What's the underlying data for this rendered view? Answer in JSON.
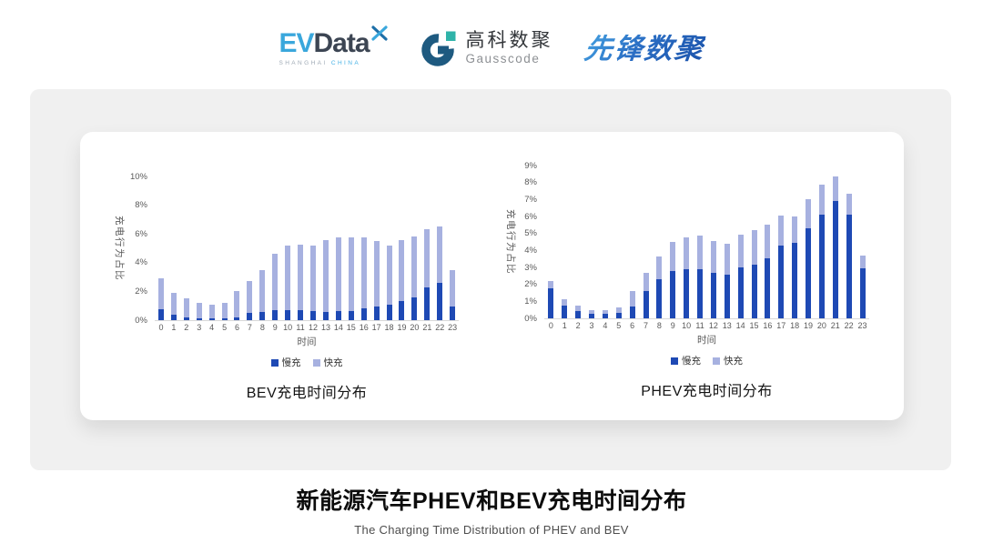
{
  "header": {
    "evdata": {
      "part1": "EV",
      "part2": "Data",
      "tagline_left": "SHANGHAI",
      "tagline_right": "CHINA"
    },
    "gausscode": {
      "name_cn": "高科数聚",
      "name_en": "Gausscode"
    },
    "pioneer": {
      "name": "先锋数聚"
    }
  },
  "colors": {
    "slow_charge": "#1E49B4",
    "fast_charge": "#A7B1E0",
    "axis_line": "#d9d9d9",
    "tick_text": "#595959"
  },
  "chart_data": [
    {
      "type": "bar",
      "stacked": true,
      "title": "BEV充电时间分布",
      "xlabel": "时间",
      "ylabel": "充电行为占比",
      "ylim": [
        0,
        10
      ],
      "ystep": 2,
      "grid": false,
      "legend_position": "bottom",
      "categories": [
        "0",
        "1",
        "2",
        "3",
        "4",
        "5",
        "6",
        "7",
        "8",
        "9",
        "10",
        "11",
        "12",
        "13",
        "14",
        "15",
        "16",
        "17",
        "18",
        "19",
        "20",
        "21",
        "22",
        "23"
      ],
      "series": [
        {
          "name": "慢充",
          "color": "#1E49B4",
          "values": [
            0.75,
            0.35,
            0.2,
            0.1,
            0.1,
            0.12,
            0.2,
            0.5,
            0.55,
            0.7,
            0.7,
            0.7,
            0.65,
            0.6,
            0.65,
            0.65,
            0.8,
            0.95,
            1.05,
            1.3,
            1.6,
            2.3,
            2.6,
            0.95
          ]
        },
        {
          "name": "快充",
          "color": "#A7B1E0",
          "values": [
            2.15,
            1.55,
            1.3,
            1.1,
            0.95,
            1.08,
            1.8,
            2.25,
            2.95,
            3.95,
            4.5,
            4.55,
            4.55,
            5.0,
            5.1,
            5.1,
            4.95,
            4.55,
            4.15,
            4.3,
            4.25,
            4.05,
            3.9,
            2.55
          ]
        }
      ]
    },
    {
      "type": "bar",
      "stacked": true,
      "title": "PHEV充电时间分布",
      "xlabel": "时间",
      "ylabel": "充电行为占比",
      "ylim": [
        0,
        9
      ],
      "ystep": 1,
      "grid": false,
      "legend_position": "bottom",
      "categories": [
        "0",
        "1",
        "2",
        "3",
        "4",
        "5",
        "6",
        "7",
        "8",
        "9",
        "10",
        "11",
        "12",
        "13",
        "14",
        "15",
        "16",
        "17",
        "18",
        "19",
        "20",
        "21",
        "22",
        "23"
      ],
      "series": [
        {
          "name": "慢充",
          "color": "#1E49B4",
          "values": [
            1.75,
            0.75,
            0.45,
            0.25,
            0.25,
            0.3,
            0.7,
            1.6,
            2.3,
            2.8,
            2.9,
            2.9,
            2.7,
            2.55,
            3.0,
            3.15,
            3.55,
            4.3,
            4.45,
            5.3,
            6.1,
            6.9,
            6.1,
            2.95
          ]
        },
        {
          "name": "快充",
          "color": "#A7B1E0",
          "values": [
            0.45,
            0.4,
            0.3,
            0.25,
            0.25,
            0.35,
            0.9,
            1.1,
            1.35,
            1.7,
            1.85,
            2.0,
            1.85,
            1.85,
            1.95,
            2.05,
            1.95,
            1.75,
            1.55,
            1.7,
            1.75,
            1.45,
            1.25,
            0.75
          ]
        }
      ]
    }
  ],
  "footer": {
    "title": "新能源汽车PHEV和BEV充电时间分布",
    "subtitle": "The Charging Time Distribution of PHEV and BEV"
  }
}
